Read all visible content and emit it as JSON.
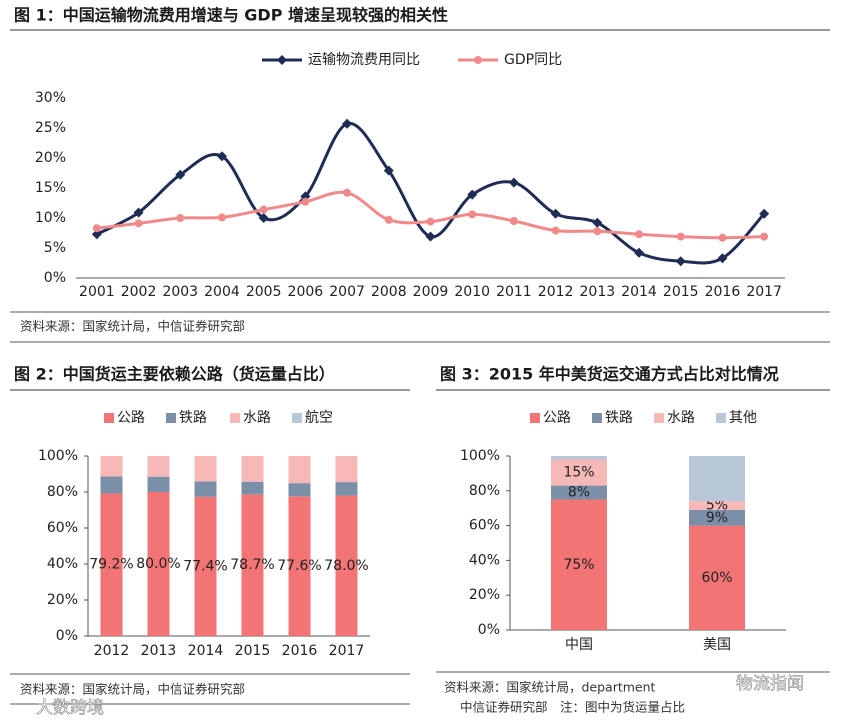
{
  "chart_data": [
    {
      "type": "line",
      "title": "图 1：中国运输物流费用增速与 GDP 增速呈现较强的相关性",
      "categories": [
        "2001",
        "2002",
        "2003",
        "2004",
        "2005",
        "2006",
        "2007",
        "2008",
        "2009",
        "2010",
        "2011",
        "2012",
        "2013",
        "2014",
        "2015",
        "2016",
        "2017"
      ],
      "series": [
        {
          "name": "运输物流费用同比",
          "color": "#1f2d55",
          "values": [
            7.3,
            10.9,
            17.2,
            20.3,
            10.0,
            13.6,
            25.7,
            17.9,
            6.9,
            13.9,
            15.9,
            10.7,
            9.2,
            4.2,
            2.8,
            3.3,
            10.7
          ]
        },
        {
          "name": "GDP同比",
          "color": "#f08a8a",
          "values": [
            8.3,
            9.1,
            10.0,
            10.1,
            11.4,
            12.7,
            14.2,
            9.7,
            9.4,
            10.6,
            9.5,
            7.9,
            7.8,
            7.3,
            6.9,
            6.7,
            6.9
          ]
        }
      ],
      "ylim": [
        0,
        30
      ],
      "yticks": [
        {
          "value": 0,
          "label": "0%"
        },
        {
          "value": 5,
          "label": "5%"
        },
        {
          "value": 10,
          "label": "10%"
        },
        {
          "value": 15,
          "label": "15%"
        },
        {
          "value": 20,
          "label": "20%"
        },
        {
          "value": 25,
          "label": "25%"
        },
        {
          "value": 30,
          "label": "30%"
        }
      ],
      "legend": "top",
      "source": [
        "资料来源：国家统计局，中信证券研究部"
      ]
    },
    {
      "type": "stacked_bar",
      "title": "图 2：中国货运主要依赖公路（货运量占比）",
      "categories": [
        "2012",
        "2013",
        "2014",
        "2015",
        "2016",
        "2017"
      ],
      "series": [
        {
          "name": "公路",
          "color": "#f27474",
          "values": [
            79.2,
            80.0,
            77.4,
            78.7,
            77.6,
            78.0
          ],
          "value_labels": [
            "79.2%",
            "80.0%",
            "77.4%",
            "78.7%",
            "77.6%",
            "78.0%"
          ]
        },
        {
          "name": "铁路",
          "color": "#7c8fa8",
          "values": [
            9.4,
            8.5,
            8.5,
            7.0,
            7.3,
            7.5
          ]
        },
        {
          "name": "水路",
          "color": "#f7b8b8",
          "values": [
            11.4,
            11.5,
            14.1,
            14.3,
            15.1,
            14.5
          ]
        },
        {
          "name": "航空",
          "color": "#b9c8d8",
          "values": [
            0,
            0,
            0,
            0,
            0,
            0
          ]
        }
      ],
      "ylim": [
        0,
        100
      ],
      "yticks": [
        {
          "value": 0,
          "label": "0%"
        },
        {
          "value": 20,
          "label": "20%"
        },
        {
          "value": 40,
          "label": "40%"
        },
        {
          "value": 60,
          "label": "60%"
        },
        {
          "value": 80,
          "label": "80%"
        },
        {
          "value": 100,
          "label": "100%"
        }
      ],
      "legend": "top",
      "source": [
        "资料来源：国家统计局，中信证券研究部"
      ]
    },
    {
      "type": "stacked_bar",
      "title": "图 3：2015 年中美货运交通方式占比对比情况",
      "categories": [
        "中国",
        "美国"
      ],
      "series": [
        {
          "name": "公路",
          "color": "#f27474",
          "values": [
            75,
            60
          ],
          "value_labels": [
            "75%",
            "60%"
          ]
        },
        {
          "name": "铁路",
          "color": "#7c8fa8",
          "values": [
            8,
            9
          ],
          "value_labels": [
            "8%",
            "9%"
          ]
        },
        {
          "name": "水路",
          "color": "#f7b8b8",
          "values": [
            15,
            5
          ],
          "value_labels": [
            "15%",
            "5%"
          ]
        },
        {
          "name": "其他",
          "color": "#b9c8d8",
          "values": [
            2,
            26
          ]
        }
      ],
      "ylim": [
        0,
        100
      ],
      "yticks": [
        {
          "value": 0,
          "label": "0%"
        },
        {
          "value": 20,
          "label": "20%"
        },
        {
          "value": 40,
          "label": "40%"
        },
        {
          "value": 60,
          "label": "60%"
        },
        {
          "value": 80,
          "label": "80%"
        },
        {
          "value": 100,
          "label": "100%"
        }
      ],
      "legend": "top",
      "source": [
        "资料来源：国家统计局，department",
        "中信证券研究部　注：图中为货运量占比"
      ]
    }
  ],
  "watermarks": [
    "大数跨境",
    "物流指闻"
  ]
}
